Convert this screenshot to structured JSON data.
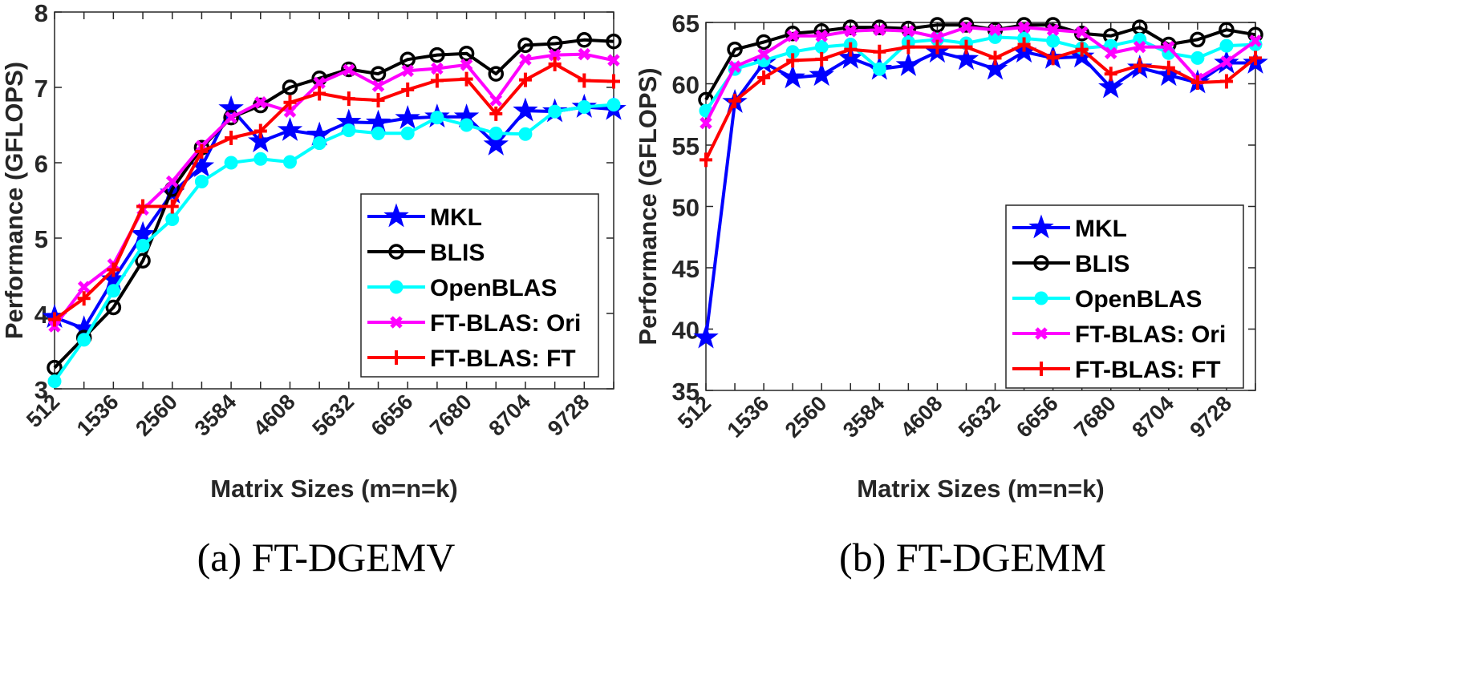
{
  "chart_data": [
    {
      "type": "line",
      "caption": "(a)  FT-DGEMV",
      "title": "",
      "xlabel": "Matrix Sizes (m=n=k)",
      "ylabel": "Performance (GFLOPS)",
      "xlim": [
        512,
        10240
      ],
      "ylim": [
        3,
        8
      ],
      "x": [
        512,
        1024,
        1536,
        2048,
        2560,
        3072,
        3584,
        4096,
        4608,
        5120,
        5632,
        6144,
        6656,
        7168,
        7680,
        8192,
        8704,
        9216,
        9728,
        10240
      ],
      "xticks": [
        512,
        1536,
        2560,
        3584,
        4608,
        5632,
        6656,
        7680,
        8704,
        9728
      ],
      "xtick_labels": [
        "512",
        "1536",
        "2560",
        "3584",
        "4608",
        "5632",
        "6656",
        "7680",
        "8704",
        "9728"
      ],
      "yticks": [
        3,
        4,
        5,
        6,
        7,
        8
      ],
      "ytick_labels": [
        "3",
        "4",
        "5",
        "6",
        "7",
        "8"
      ],
      "legend_position": "lower-right",
      "series": [
        {
          "name": "MKL",
          "color": "#0000ff",
          "marker": "star",
          "values": [
            3.95,
            3.8,
            4.45,
            5.05,
            5.6,
            5.95,
            6.72,
            6.28,
            6.43,
            6.37,
            6.54,
            6.53,
            6.59,
            6.61,
            6.61,
            6.24,
            6.69,
            6.68,
            6.74,
            6.71
          ]
        },
        {
          "name": "BLIS",
          "color": "#000000",
          "marker": "circle",
          "values": [
            3.28,
            3.68,
            4.08,
            4.7,
            5.65,
            6.2,
            6.6,
            6.76,
            7.0,
            7.12,
            7.24,
            7.18,
            7.37,
            7.43,
            7.45,
            7.18,
            7.56,
            7.58,
            7.63,
            7.61
          ]
        },
        {
          "name": "OpenBLAS",
          "color": "#00ffff",
          "marker": "dot",
          "values": [
            3.1,
            3.65,
            4.3,
            4.9,
            5.25,
            5.75,
            6.0,
            6.05,
            6.01,
            6.26,
            6.43,
            6.39,
            6.39,
            6.6,
            6.5,
            6.39,
            6.38,
            6.68,
            6.74,
            6.77
          ]
        },
        {
          "name": "FT-BLAS: Ori",
          "color": "#ff00ff",
          "marker": "x",
          "values": [
            3.83,
            4.35,
            4.65,
            5.38,
            5.75,
            6.22,
            6.6,
            6.8,
            6.68,
            7.06,
            7.23,
            7.02,
            7.22,
            7.25,
            7.3,
            6.83,
            7.37,
            7.43,
            7.44,
            7.36
          ]
        },
        {
          "name": "FT-BLAS: FT",
          "color": "#ff0000",
          "marker": "plus",
          "values": [
            3.92,
            4.2,
            4.58,
            5.42,
            5.42,
            6.15,
            6.33,
            6.42,
            6.8,
            6.92,
            6.85,
            6.83,
            6.97,
            7.09,
            7.11,
            6.65,
            7.1,
            7.31,
            7.09,
            7.08
          ]
        }
      ]
    },
    {
      "type": "line",
      "caption": "(b)  FT-DGEMM",
      "title": "",
      "xlabel": "Matrix Sizes (m=n=k)",
      "ylabel": "Performance (GFLOPS)",
      "xlim": [
        512,
        10240
      ],
      "ylim": [
        35,
        65
      ],
      "x": [
        512,
        1024,
        1536,
        2048,
        2560,
        3072,
        3584,
        4096,
        4608,
        5120,
        5632,
        6144,
        6656,
        7168,
        7680,
        8192,
        8704,
        9216,
        9728,
        10240
      ],
      "xticks": [
        512,
        1536,
        2560,
        3584,
        4608,
        5632,
        6656,
        7680,
        8704,
        9728
      ],
      "xtick_labels": [
        "512",
        "1536",
        "2560",
        "3584",
        "4608",
        "5632",
        "6656",
        "7680",
        "8704",
        "9728"
      ],
      "yticks": [
        35,
        40,
        45,
        50,
        55,
        60,
        65
      ],
      "ytick_labels": [
        "35",
        "40",
        "45",
        "50",
        "55",
        "60",
        "65"
      ],
      "legend_position": "lower-right",
      "series": [
        {
          "name": "MKL",
          "color": "#0000ff",
          "marker": "star",
          "values": [
            39.3,
            58.5,
            61.7,
            60.5,
            60.7,
            62.1,
            61.2,
            61.5,
            62.6,
            62.0,
            61.2,
            62.6,
            62.1,
            62.2,
            59.7,
            61.3,
            60.7,
            60.1,
            61.7,
            61.7
          ]
        },
        {
          "name": "BLIS",
          "color": "#000000",
          "marker": "circle",
          "values": [
            58.7,
            62.8,
            63.4,
            64.1,
            64.3,
            64.6,
            64.6,
            64.5,
            64.8,
            64.8,
            64.4,
            64.8,
            64.8,
            64.1,
            63.9,
            64.6,
            63.2,
            63.6,
            64.4,
            64.0
          ]
        },
        {
          "name": "OpenBLAS",
          "color": "#00ffff",
          "marker": "dot",
          "values": [
            57.8,
            61.2,
            61.9,
            62.6,
            63.0,
            63.2,
            61.2,
            63.4,
            63.6,
            63.3,
            63.8,
            63.7,
            63.5,
            62.9,
            63.1,
            63.6,
            62.5,
            62.1,
            63.1,
            63.2
          ]
        },
        {
          "name": "FT-BLAS: Ori",
          "color": "#ff00ff",
          "marker": "x",
          "values": [
            56.8,
            61.4,
            62.4,
            63.9,
            63.9,
            64.3,
            64.4,
            64.3,
            63.8,
            64.6,
            64.4,
            64.6,
            64.4,
            64.2,
            62.5,
            63.0,
            63.0,
            60.4,
            61.8,
            63.5
          ]
        },
        {
          "name": "FT-BLAS: FT",
          "color": "#ff0000",
          "marker": "plus",
          "values": [
            53.8,
            58.6,
            60.5,
            61.9,
            62.0,
            62.8,
            62.6,
            63.0,
            63.0,
            63.0,
            62.1,
            63.2,
            62.1,
            62.8,
            60.8,
            61.5,
            61.3,
            60.1,
            60.2,
            62.1
          ]
        }
      ]
    }
  ]
}
